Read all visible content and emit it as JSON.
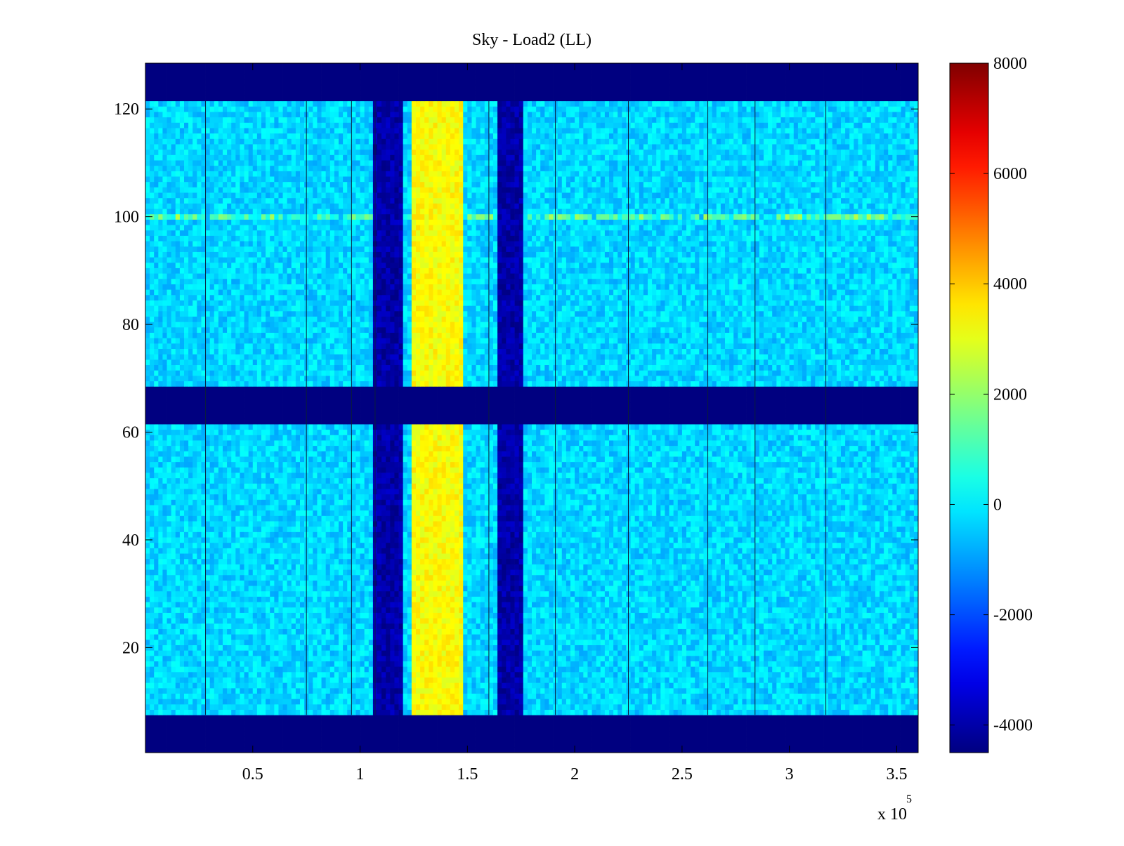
{
  "chart_data": {
    "type": "heatmap",
    "title": "Sky - Load2 (LL)",
    "xlabel": "",
    "ylabel": "",
    "x_exponent_label": "x 10",
    "x_exponent_power": "5",
    "xlim": [
      0,
      3.6
    ],
    "ylim": [
      0.5,
      128.5
    ],
    "x_ticks": [
      {
        "value": 0.5,
        "label": "0.5"
      },
      {
        "value": 1.0,
        "label": "1"
      },
      {
        "value": 1.5,
        "label": "1.5"
      },
      {
        "value": 2.0,
        "label": "2"
      },
      {
        "value": 2.5,
        "label": "2.5"
      },
      {
        "value": 3.0,
        "label": "3"
      },
      {
        "value": 3.5,
        "label": "3.5"
      }
    ],
    "y_ticks": [
      {
        "value": 20,
        "label": "20"
      },
      {
        "value": 40,
        "label": "40"
      },
      {
        "value": 60,
        "label": "60"
      },
      {
        "value": 80,
        "label": "80"
      },
      {
        "value": 100,
        "label": "100"
      },
      {
        "value": 120,
        "label": "120"
      }
    ],
    "colorbar": {
      "colormap": "jet",
      "clim": [
        -4500,
        8000
      ],
      "ticks": [
        {
          "value": 8000,
          "label": "8000"
        },
        {
          "value": 6000,
          "label": "6000"
        },
        {
          "value": 4000,
          "label": "4000"
        },
        {
          "value": 2000,
          "label": "2000"
        },
        {
          "value": 0,
          "label": "0"
        },
        {
          "value": -2000,
          "label": "-2000"
        },
        {
          "value": -4000,
          "label": "-4000"
        }
      ]
    },
    "masked_channel_ranges": [
      [
        0.5,
        7.5
      ],
      [
        61.5,
        68.5
      ],
      [
        121.5,
        128.5
      ]
    ],
    "masked_value": -4500,
    "background_value": -300,
    "x_bands": [
      {
        "x_range": [
          1.07,
          1.2
        ],
        "value": -4000
      },
      {
        "x_range": [
          1.24,
          1.47
        ],
        "value": 3300
      },
      {
        "x_range": [
          1.64,
          1.76
        ],
        "value": -4000
      }
    ],
    "bright_channels": [
      100
    ],
    "gap_lines_x": [
      0.28,
      0.75,
      0.96,
      1.07,
      1.6,
      1.91,
      2.25,
      2.62,
      2.84,
      3.17
    ]
  },
  "colors": {
    "masked": "#00008f",
    "background": "#13aee6",
    "axes": "#000000"
  }
}
